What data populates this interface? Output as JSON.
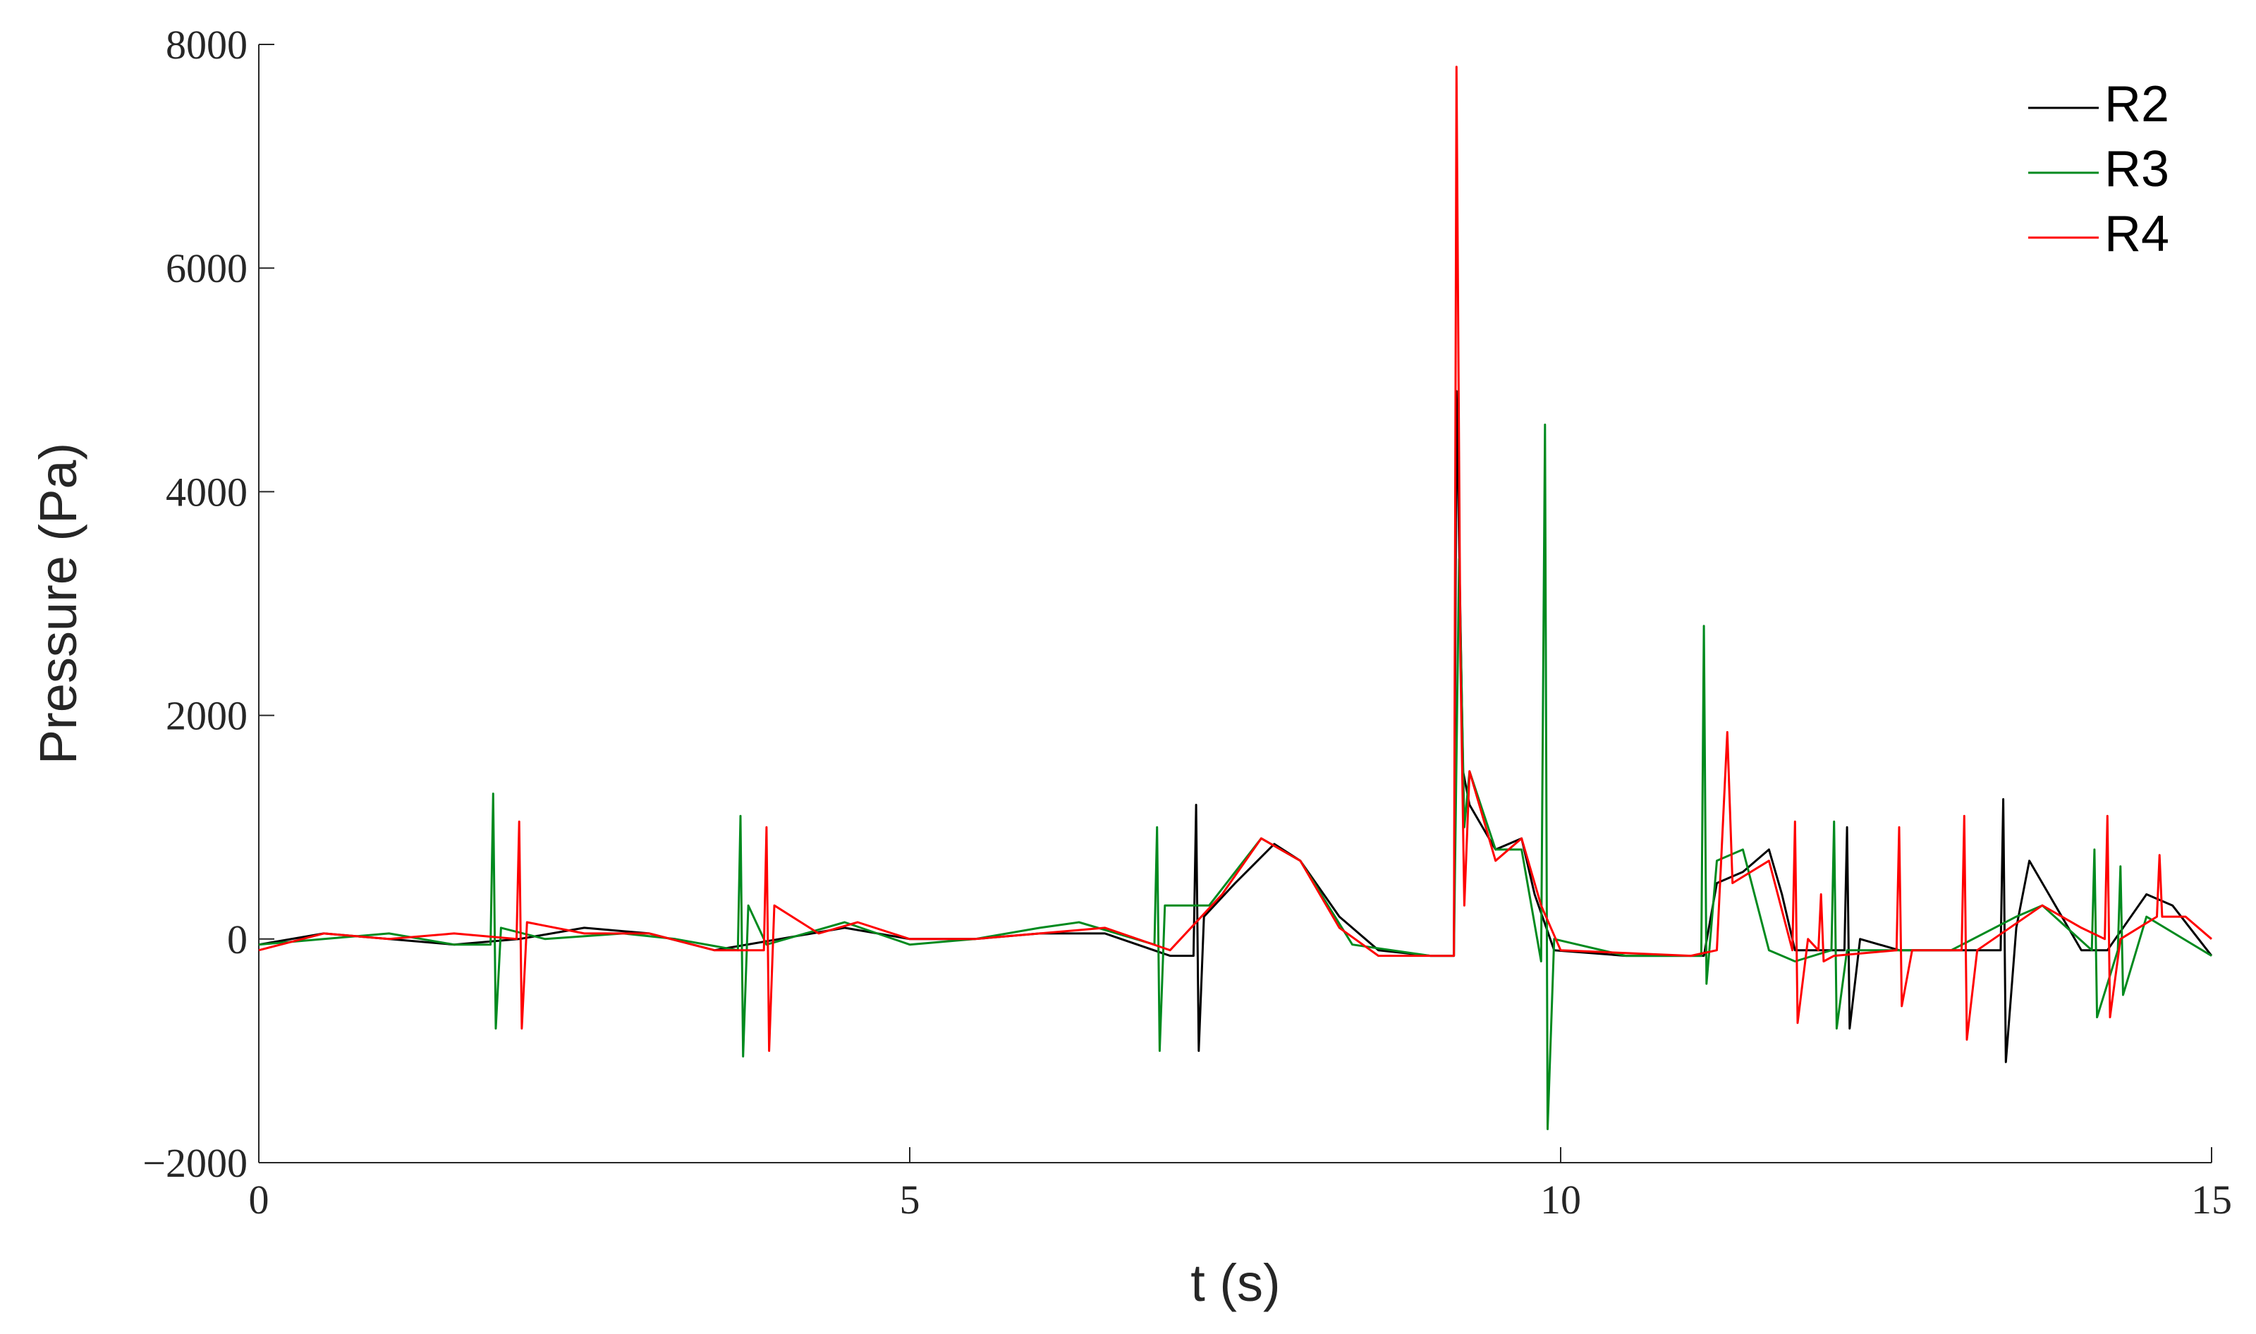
{
  "chart_data": {
    "type": "line",
    "xlabel": "t (s)",
    "ylabel": "Pressure (Pa)",
    "xlim": [
      0,
      15
    ],
    "xticks": [
      0,
      5,
      10,
      15
    ],
    "ylim": [
      -2000,
      8000
    ],
    "yticks": [
      {
        "value": -2000,
        "label": "−2000"
      },
      0,
      2000,
      4000,
      6000,
      8000
    ],
    "grid": false,
    "legend": "upper right",
    "series": [
      {
        "name": "R2",
        "color": "#000000",
        "x": [
          0,
          0.5,
          1.0,
          1.5,
          2.0,
          2.5,
          3.0,
          3.5,
          4.0,
          4.5,
          5.0,
          5.5,
          6.0,
          6.5,
          7.0,
          7.18,
          7.2,
          7.22,
          7.26,
          7.5,
          7.8,
          8.0,
          8.3,
          8.6,
          9.0,
          9.18,
          9.2,
          9.25,
          9.3,
          9.5,
          9.7,
          9.8,
          9.95,
          10.5,
          11.0,
          11.1,
          11.2,
          11.4,
          11.6,
          11.7,
          11.8,
          12.0,
          12.18,
          12.2,
          12.22,
          12.3,
          12.6,
          13.0,
          13.38,
          13.4,
          13.42,
          13.5,
          13.6,
          13.8,
          14.0,
          14.2,
          14.5,
          14.7,
          15.0
        ],
        "values": [
          -50,
          50,
          0,
          -50,
          0,
          100,
          50,
          -100,
          0,
          100,
          0,
          0,
          50,
          50,
          -150,
          -150,
          1200,
          -1000,
          200,
          500,
          850,
          700,
          200,
          -100,
          -150,
          -150,
          4900,
          1500,
          1200,
          800,
          900,
          400,
          -100,
          -150,
          -150,
          -150,
          500,
          600,
          800,
          400,
          -100,
          -100,
          -100,
          1000,
          -800,
          0,
          -100,
          -100,
          -100,
          1250,
          -1100,
          100,
          700,
          300,
          -100,
          -100,
          400,
          300,
          -150
        ]
      },
      {
        "name": "R3",
        "color": "#008a1e",
        "x": [
          0,
          0.5,
          1.0,
          1.5,
          1.78,
          1.8,
          1.82,
          1.86,
          2.2,
          2.8,
          3.2,
          3.68,
          3.7,
          3.72,
          3.76,
          3.9,
          4.5,
          5.0,
          5.5,
          6.0,
          6.3,
          6.88,
          6.9,
          6.92,
          6.96,
          7.3,
          7.7,
          8.0,
          8.4,
          9.0,
          9.18,
          9.22,
          9.26,
          9.3,
          9.5,
          9.7,
          9.85,
          9.88,
          9.9,
          9.95,
          10.5,
          11.08,
          11.1,
          11.12,
          11.2,
          11.4,
          11.6,
          11.8,
          12.08,
          12.1,
          12.12,
          12.2,
          13.0,
          13.5,
          13.7,
          14.08,
          14.1,
          14.12,
          14.28,
          14.3,
          14.32,
          14.5,
          15.0
        ],
        "values": [
          -50,
          0,
          50,
          -50,
          -50,
          1300,
          -800,
          100,
          0,
          50,
          0,
          -100,
          1100,
          -1050,
          300,
          -50,
          150,
          -50,
          0,
          100,
          150,
          -50,
          1000,
          -1000,
          300,
          300,
          900,
          700,
          -50,
          -150,
          -150,
          3400,
          1000,
          1500,
          800,
          800,
          -200,
          4600,
          -1700,
          0,
          -150,
          -150,
          2800,
          -400,
          700,
          800,
          -100,
          -200,
          -100,
          1050,
          -800,
          -100,
          -100,
          200,
          300,
          -100,
          800,
          -700,
          -100,
          650,
          -500,
          200,
          -150
        ]
      },
      {
        "name": "R4",
        "color": "#ff0000",
        "x": [
          0,
          0.5,
          1.0,
          1.5,
          1.98,
          2.0,
          2.02,
          2.06,
          2.5,
          3.0,
          3.5,
          3.88,
          3.9,
          3.92,
          3.96,
          4.3,
          4.6,
          5.0,
          5.5,
          6.0,
          6.5,
          7.0,
          7.4,
          7.7,
          8.0,
          8.3,
          8.6,
          9.18,
          9.2,
          9.23,
          9.26,
          9.3,
          9.5,
          9.7,
          9.85,
          10.0,
          11.0,
          11.2,
          11.28,
          11.32,
          11.6,
          11.78,
          11.8,
          11.82,
          11.9,
          11.98,
          12.0,
          12.02,
          12.1,
          12.58,
          12.6,
          12.62,
          12.7,
          13.08,
          13.1,
          13.12,
          13.2,
          13.7,
          14.0,
          14.18,
          14.2,
          14.22,
          14.3,
          14.58,
          14.6,
          14.62,
          14.8,
          15.0
        ],
        "values": [
          -100,
          50,
          0,
          50,
          0,
          1050,
          -800,
          150,
          50,
          50,
          -100,
          -100,
          1000,
          -1000,
          300,
          50,
          150,
          0,
          0,
          50,
          100,
          -100,
          400,
          900,
          700,
          100,
          -150,
          -150,
          7800,
          2500,
          300,
          1500,
          700,
          900,
          300,
          -100,
          -150,
          -100,
          1850,
          500,
          700,
          -100,
          1050,
          -750,
          0,
          -100,
          400,
          -200,
          -150,
          -100,
          1000,
          -600,
          -100,
          -100,
          1100,
          -900,
          -100,
          300,
          100,
          0,
          1100,
          -700,
          0,
          200,
          750,
          200,
          200,
          0
        ]
      }
    ]
  }
}
